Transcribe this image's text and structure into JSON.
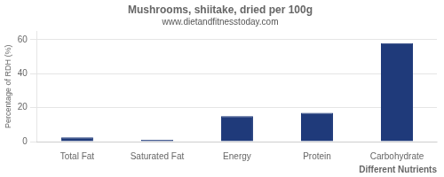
{
  "chart_data": {
    "type": "bar",
    "title": "Mushrooms, shiitake, dried per 100g",
    "subtitle": "www.dietandfitnesstoday.com",
    "categories": [
      "Total Fat",
      "Saturated Fat",
      "Energy",
      "Protein",
      "Carbohydrate"
    ],
    "values": [
      2.5,
      1.0,
      15.0,
      17.0,
      58.0
    ],
    "color": "#1F3A7A",
    "xlabel": "Different Nutrients",
    "ylabel": "Percentage of RDH (%)",
    "ylim": [
      0,
      65
    ],
    "yticks": [
      0,
      20,
      40,
      60
    ],
    "grid": true
  }
}
